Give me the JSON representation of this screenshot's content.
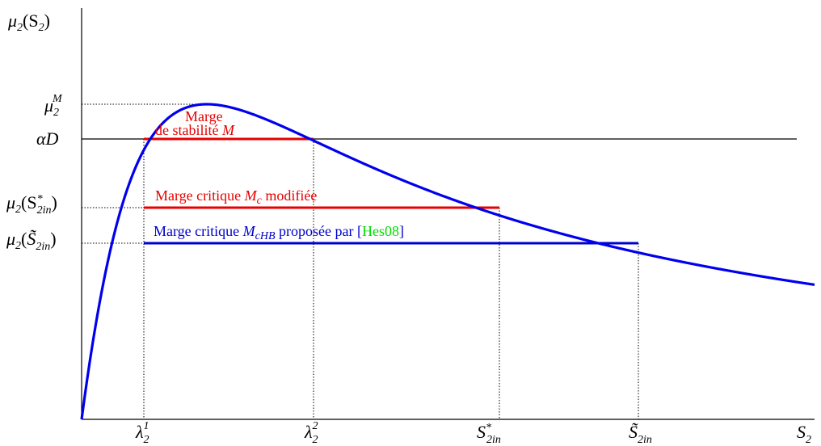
{
  "y_axis_label": {
    "base": "μ",
    "sub": "2",
    "arg": "(S",
    "arg_sub": "2",
    "close": ")"
  },
  "x_axis_label": {
    "base": "S",
    "sub": "2"
  },
  "y_ticks": {
    "mu_max": {
      "base": "μ",
      "sub": "2",
      "sup": "M"
    },
    "alpha_d": {
      "text": "αD"
    },
    "mu_star": {
      "base": "μ",
      "sub": "2",
      "open": "(S",
      "sup": "*",
      "arg_sub": "2in",
      "close": ")"
    },
    "mu_tilde": {
      "base": "μ",
      "sub": "2",
      "open": "(",
      "tilde_letter": "S̃",
      "arg_sub": "2in",
      "close": ")"
    }
  },
  "x_ticks": {
    "lambda1": {
      "base": "λ",
      "sub": "2",
      "sup": "1"
    },
    "lambda2": {
      "base": "λ",
      "sub": "2",
      "sup": "2"
    },
    "s_star": {
      "base": "S",
      "sub": "2in",
      "sup": "*"
    },
    "s_tilde": {
      "base": "S̃",
      "sub": "2in"
    }
  },
  "annotations": {
    "stability_line1": "Marge",
    "stability_line2": "de stabilité ",
    "stability_var": "M",
    "critical_prefix": "Marge critique ",
    "critical_var": "M",
    "critical_var_sub": "c",
    "critical_suffix": " modifiée",
    "hb_prefix": "Marge critique ",
    "hb_var": "M",
    "hb_var_sub": "cHB",
    "hb_middle": " proposée par ",
    "hb_bracket_open": "[",
    "hb_ref": "Hes08",
    "hb_bracket_close": "]"
  },
  "colors": {
    "curve": "#0000ee",
    "stability_margin": "#e60000",
    "critical_margin": "#e60000",
    "hb_margin": "#0000cc",
    "reference": "#00dd00",
    "axis": "#000000"
  }
}
